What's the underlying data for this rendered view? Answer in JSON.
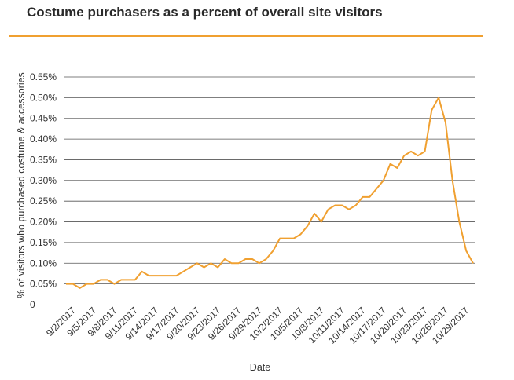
{
  "chart_data": {
    "type": "line",
    "title": "Costume purchasers as a percent of overall site visitors",
    "xlabel": "Date",
    "ylabel": "% of visitors who purchased costume & accessories",
    "ylim": [
      0,
      0.55
    ],
    "yticks": [
      "0",
      "0.05%",
      "0.10%",
      "0.15%",
      "0.20%",
      "0.25%",
      "0.30%",
      "0.35%",
      "0.40%",
      "0.45%",
      "0.50%",
      "0.55%"
    ],
    "xtick_labels": [
      "9/2/2017",
      "9/5/2017",
      "9/8/2017",
      "9/11/2017",
      "9/14/2017",
      "9/17/2017",
      "9/20/2017",
      "9/23/2017",
      "9/26/2017",
      "9/29/2017",
      "10/2/2017",
      "10/5/2017",
      "10/8/2017",
      "10/11/2017",
      "10/14/2017",
      "10/17/2017",
      "10/20/2017",
      "10/23/2017",
      "10/26/2017",
      "10/29/2017"
    ],
    "grid": true,
    "line_color": "#f0a030",
    "series": [
      {
        "x": [
          "9/1/2017",
          "9/2/2017",
          "9/3/2017",
          "9/4/2017",
          "9/5/2017",
          "9/6/2017",
          "9/7/2017",
          "9/8/2017",
          "9/9/2017",
          "9/10/2017",
          "9/11/2017",
          "9/12/2017",
          "9/13/2017",
          "9/14/2017",
          "9/15/2017",
          "9/16/2017",
          "9/17/2017",
          "9/18/2017",
          "9/19/2017",
          "9/20/2017",
          "9/21/2017",
          "9/22/2017",
          "9/23/2017",
          "9/24/2017",
          "9/25/2017",
          "9/26/2017",
          "9/27/2017",
          "9/28/2017",
          "9/29/2017",
          "9/30/2017",
          "10/1/2017",
          "10/2/2017",
          "10/3/2017",
          "10/4/2017",
          "10/5/2017",
          "10/6/2017",
          "10/7/2017",
          "10/8/2017",
          "10/9/2017",
          "10/10/2017",
          "10/11/2017",
          "10/12/2017",
          "10/13/2017",
          "10/14/2017",
          "10/15/2017",
          "10/16/2017",
          "10/17/2017",
          "10/18/2017",
          "10/19/2017",
          "10/20/2017",
          "10/21/2017",
          "10/22/2017",
          "10/23/2017",
          "10/24/2017",
          "10/25/2017",
          "10/26/2017",
          "10/27/2017",
          "10/28/2017",
          "10/29/2017",
          "10/30/2017"
        ],
        "values": [
          0.05,
          0.05,
          0.04,
          0.05,
          0.05,
          0.06,
          0.06,
          0.05,
          0.06,
          0.06,
          0.06,
          0.08,
          0.07,
          0.07,
          0.07,
          0.07,
          0.07,
          0.08,
          0.09,
          0.1,
          0.09,
          0.1,
          0.09,
          0.11,
          0.1,
          0.1,
          0.11,
          0.11,
          0.1,
          0.11,
          0.13,
          0.16,
          0.16,
          0.16,
          0.17,
          0.19,
          0.22,
          0.2,
          0.23,
          0.24,
          0.24,
          0.23,
          0.24,
          0.26,
          0.26,
          0.28,
          0.3,
          0.34,
          0.33,
          0.36,
          0.37,
          0.36,
          0.37,
          0.47,
          0.5,
          0.44,
          0.3,
          0.2,
          0.13,
          0.1
        ]
      }
    ]
  }
}
